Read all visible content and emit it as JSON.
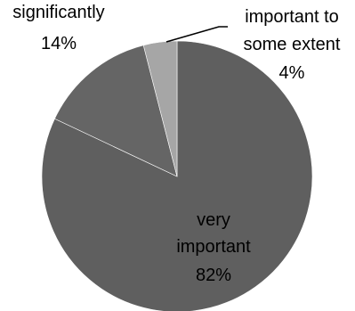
{
  "chart_data": {
    "type": "pie",
    "slices": [
      {
        "label_lines": [
          "very",
          "important"
        ],
        "value": 82,
        "value_label": "82%",
        "color": "#5f5f5f"
      },
      {
        "label_lines": [
          "significantly"
        ],
        "value": 14,
        "value_label": "14%",
        "color": "#656565"
      },
      {
        "label_lines": [
          "important to",
          "some extent"
        ],
        "value": 4,
        "value_label": "4%",
        "color": "#a6a6a6"
      }
    ],
    "title": "",
    "legend": "none",
    "start": "top, clockwise"
  }
}
